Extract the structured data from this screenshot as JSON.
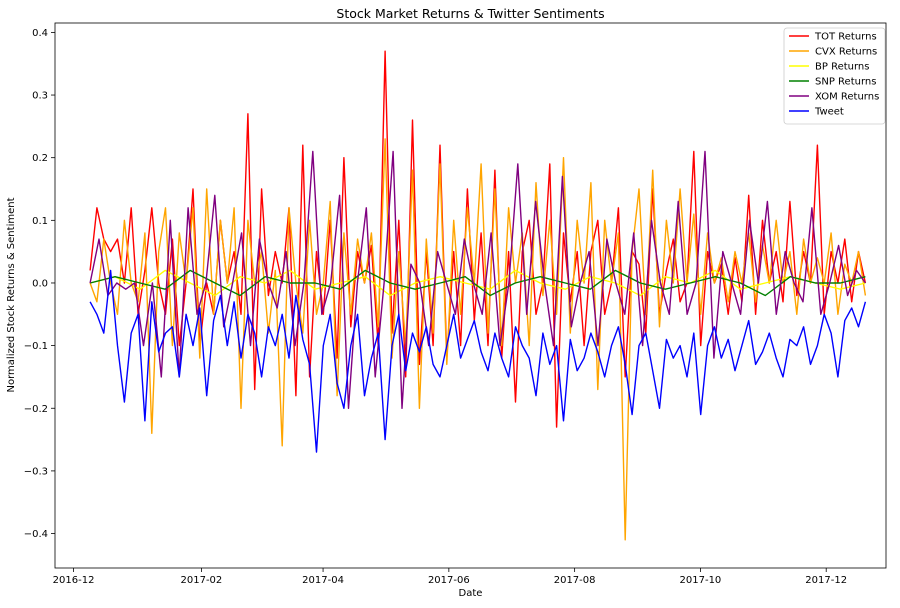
{
  "chart_data": {
    "type": "line",
    "title": "Stock Market Returns & Twitter Sentiments",
    "xlabel": "Date",
    "ylabel": "Normalized Stock Returns & Sentiment",
    "x_tick_labels": [
      "2016-12",
      "2017-02",
      "2017-04",
      "2017-06",
      "2017-08",
      "2017-10",
      "2017-12"
    ],
    "y_ticks": [
      -0.4,
      -0.3,
      -0.2,
      -0.1,
      0.0,
      0.1,
      0.2,
      0.3,
      0.4
    ],
    "y_tick_labels": [
      "−0.4",
      "−0.3",
      "−0.2",
      "−0.1",
      "0.0",
      "0.1",
      "0.2",
      "0.3",
      "0.4"
    ],
    "ylim": [
      -0.455,
      0.415
    ],
    "xlim": [
      "2016-11-22",
      "2017-12-30"
    ],
    "grid": false,
    "legend_position": "top-right",
    "x_start_date": "2016-12-09",
    "x_end_date": "2017-12-20",
    "series": [
      {
        "name": "TOT Returns",
        "color": "#ff0000",
        "values": [
          0.02,
          0.12,
          0.07,
          0.05,
          0.07,
          0.0,
          0.12,
          -0.05,
          0.02,
          0.12,
          0.0,
          -0.05,
          0.07,
          -0.1,
          0.0,
          0.15,
          -0.1,
          0.0,
          -0.05,
          0.1,
          0.0,
          0.05,
          -0.05,
          0.27,
          -0.17,
          0.15,
          -0.02,
          0.05,
          0.0,
          0.12,
          -0.18,
          0.22,
          -0.15,
          0.05,
          -0.05,
          0.1,
          -0.12,
          0.2,
          -0.07,
          0.05,
          0.0,
          0.06,
          -0.1,
          0.37,
          -0.08,
          0.1,
          -0.15,
          0.26,
          -0.13,
          0.05,
          -0.1,
          0.22,
          -0.12,
          0.05,
          -0.1,
          0.15,
          -0.06,
          0.08,
          -0.1,
          0.18,
          -0.12,
          0.05,
          -0.19,
          0.05,
          0.1,
          -0.05,
          0.0,
          0.19,
          -0.23,
          0.08,
          -0.03,
          0.05,
          -0.1,
          0.05,
          0.1,
          -0.05,
          0.0,
          0.12,
          -0.15,
          0.05,
          0.03,
          -0.08,
          0.15,
          -0.05,
          0.02,
          0.07,
          -0.03,
          0.0,
          0.21,
          -0.1,
          0.05,
          0.0,
          0.03,
          -0.05,
          0.04,
          -0.03,
          0.14,
          -0.05,
          0.1,
          0.0,
          0.05,
          -0.03,
          0.13,
          -0.02,
          0.05,
          0.0,
          0.22,
          -0.05,
          0.05,
          0.0,
          0.07,
          -0.03,
          0.05,
          0.0
        ]
      },
      {
        "name": "CVX Returns",
        "color": "#ffa500",
        "values": [
          0.0,
          -0.03,
          0.07,
          0.0,
          -0.05,
          0.1,
          0.0,
          -0.03,
          0.08,
          -0.24,
          0.05,
          0.12,
          -0.1,
          0.08,
          0.0,
          0.12,
          -0.12,
          0.15,
          -0.05,
          0.1,
          0.0,
          0.12,
          -0.2,
          0.1,
          0.0,
          0.05,
          -0.08,
          0.02,
          -0.26,
          0.12,
          0.0,
          -0.08,
          0.1,
          -0.05,
          0.0,
          0.13,
          -0.18,
          0.08,
          -0.05,
          0.07,
          0.0,
          0.08,
          -0.07,
          0.23,
          -0.12,
          0.05,
          -0.1,
          0.18,
          -0.2,
          0.07,
          -0.08,
          0.19,
          -0.13,
          0.1,
          -0.05,
          0.12,
          0.0,
          0.19,
          -0.08,
          0.15,
          -0.1,
          0.12,
          0.0,
          0.08,
          -0.1,
          0.16,
          -0.02,
          0.1,
          -0.05,
          0.2,
          -0.08,
          0.1,
          0.0,
          0.16,
          -0.17,
          0.1,
          0.0,
          0.08,
          -0.41,
          0.05,
          0.15,
          -0.05,
          0.18,
          -0.07,
          0.1,
          0.0,
          0.15,
          0.0,
          0.11,
          -0.05,
          0.08,
          0.0,
          0.04,
          -0.03,
          0.05,
          0.0,
          0.08,
          -0.03,
          0.06,
          0.0,
          0.1,
          0.0,
          0.05,
          -0.05,
          0.07,
          0.0,
          0.04,
          0.0,
          0.08,
          -0.05,
          0.03,
          0.0,
          0.05,
          -0.02
        ]
      },
      {
        "name": "BP Returns",
        "color": "#ffff00",
        "values": [
          0.0,
          0.01,
          -0.01,
          0.02,
          0.0,
          -0.02,
          0.01,
          0.0,
          0.02,
          -0.01,
          0.0,
          0.01,
          -0.02,
          0.0,
          0.01,
          0.0,
          -0.01,
          0.02,
          0.0,
          -0.01,
          0.01,
          0.0,
          -0.02,
          0.01,
          0.0,
          0.02,
          -0.01,
          0.0,
          0.01,
          0.0,
          -0.01,
          0.0
        ]
      },
      {
        "name": "SNP Returns",
        "color": "#008000",
        "values": [
          0.0,
          0.01,
          0.0,
          -0.01,
          0.02,
          0.0,
          -0.02,
          0.01,
          0.0,
          0.0,
          -0.01,
          0.02,
          0.0,
          -0.01,
          0.0,
          0.01,
          -0.02,
          0.0,
          0.01,
          0.0,
          -0.01,
          0.02,
          0.0,
          -0.01,
          0.0,
          0.01,
          0.0,
          -0.02,
          0.01,
          0.0,
          0.0,
          0.01
        ]
      },
      {
        "name": "XOM Returns",
        "color": "#800080",
        "values": [
          0.0,
          0.07,
          -0.02,
          0.0,
          -0.01,
          0.0,
          -0.1,
          0.0,
          -0.15,
          0.1,
          -0.15,
          0.12,
          -0.05,
          0.0,
          0.14,
          -0.07,
          0.0,
          0.08,
          -0.1,
          0.07,
          0.0,
          -0.04,
          0.05,
          -0.1,
          0.0,
          0.21,
          -0.05,
          0.0,
          0.14,
          -0.2,
          0.0,
          0.12,
          -0.15,
          0.0,
          0.21,
          -0.2,
          0.03,
          0.0,
          -0.1,
          0.05,
          0.0,
          -0.05,
          0.07,
          0.0,
          -0.05,
          0.08,
          -0.1,
          0.0,
          0.19,
          -0.05,
          0.13,
          0.0,
          -0.1,
          0.17,
          -0.07,
          0.0,
          0.05,
          -0.1,
          0.07,
          0.0,
          -0.05,
          0.08,
          -0.1,
          0.1,
          0.0,
          -0.05,
          0.13,
          -0.05,
          0.0,
          0.21,
          -0.12,
          0.05,
          0.0,
          -0.05,
          0.1,
          0.0,
          0.13,
          -0.05,
          0.05,
          0.0,
          -0.03,
          0.12,
          -0.05,
          0.0,
          0.06,
          -0.02,
          0.02,
          0.0
        ]
      },
      {
        "name": "Tweet",
        "color": "#0000ff",
        "values": [
          -0.03,
          -0.05,
          -0.08,
          0.02,
          -0.1,
          -0.19,
          -0.08,
          -0.05,
          -0.22,
          -0.03,
          -0.11,
          -0.08,
          -0.07,
          -0.15,
          -0.05,
          -0.1,
          -0.04,
          -0.18,
          -0.06,
          -0.02,
          -0.1,
          -0.03,
          -0.12,
          -0.05,
          -0.08,
          -0.15,
          -0.07,
          -0.1,
          -0.05,
          -0.12,
          -0.02,
          -0.09,
          -0.13,
          -0.27,
          -0.1,
          -0.05,
          -0.16,
          -0.2,
          -0.1,
          -0.05,
          -0.18,
          -0.12,
          -0.08,
          -0.25,
          -0.1,
          -0.05,
          -0.14,
          -0.08,
          -0.11,
          -0.07,
          -0.13,
          -0.15,
          -0.1,
          -0.05,
          -0.12,
          -0.09,
          -0.06,
          -0.11,
          -0.14,
          -0.08,
          -0.12,
          -0.15,
          -0.07,
          -0.1,
          -0.12,
          -0.18,
          -0.08,
          -0.13,
          -0.1,
          -0.22,
          -0.09,
          -0.14,
          -0.12,
          -0.08,
          -0.11,
          -0.15,
          -0.1,
          -0.07,
          -0.13,
          -0.21,
          -0.1,
          -0.08,
          -0.14,
          -0.2,
          -0.09,
          -0.12,
          -0.1,
          -0.15,
          -0.08,
          -0.21,
          -0.1,
          -0.07,
          -0.12,
          -0.09,
          -0.14,
          -0.1,
          -0.06,
          -0.13,
          -0.11,
          -0.08,
          -0.12,
          -0.15,
          -0.09,
          -0.1,
          -0.07,
          -0.13,
          -0.1,
          -0.05,
          -0.08,
          -0.15,
          -0.06,
          -0.04,
          -0.07,
          -0.03
        ]
      }
    ]
  }
}
